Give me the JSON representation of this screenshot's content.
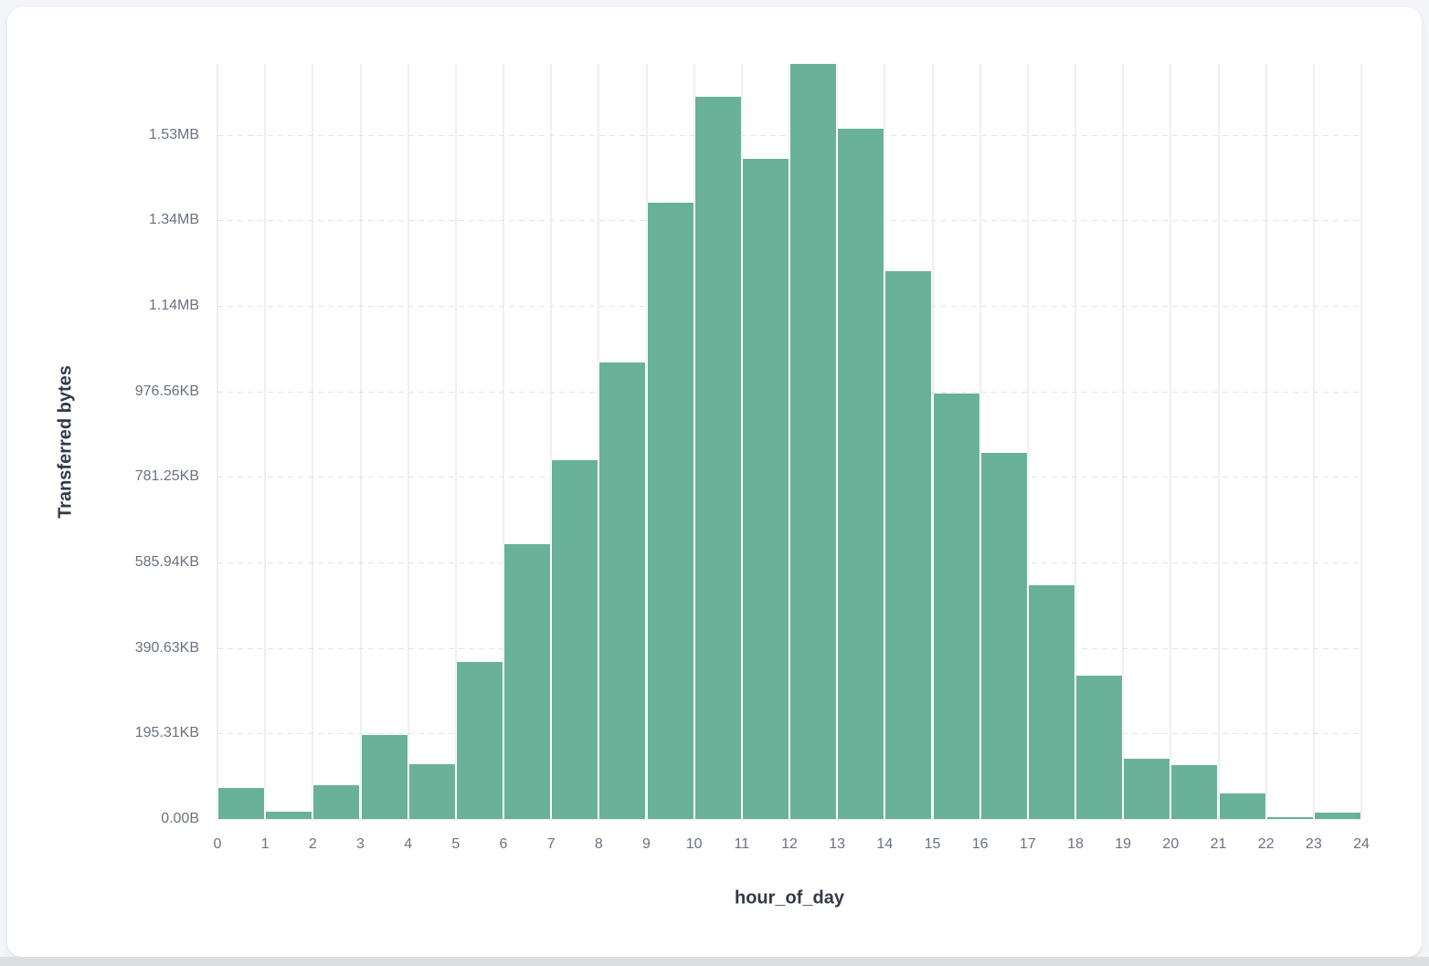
{
  "chart_data": {
    "type": "bar",
    "title": "",
    "xlabel": "hour_of_day",
    "ylabel": "Transferred bytes",
    "bar_color": "#6AB199",
    "grid": {
      "horizontal": "dashed",
      "vertical": "solid",
      "legend": "none"
    },
    "xlim": [
      0,
      24
    ],
    "ylim": [
      0,
      1766000
    ],
    "categories": [
      0,
      1,
      2,
      3,
      4,
      5,
      6,
      7,
      8,
      9,
      10,
      11,
      12,
      13,
      14,
      15,
      16,
      17,
      18,
      19,
      20,
      21,
      22,
      23
    ],
    "values": [
      73000,
      17500,
      80000,
      197000,
      128000,
      368000,
      643000,
      840000,
      1067000,
      1442000,
      1689000,
      1543000,
      1766000,
      1614000,
      1282000,
      996000,
      857000,
      547000,
      335000,
      141000,
      126000,
      59000,
      4700,
      15400
    ],
    "x_ticks": [
      "0",
      "1",
      "2",
      "3",
      "4",
      "5",
      "6",
      "7",
      "8",
      "9",
      "10",
      "11",
      "12",
      "13",
      "14",
      "15",
      "16",
      "17",
      "18",
      "19",
      "20",
      "21",
      "22",
      "23",
      "24"
    ],
    "y_ticks": [
      {
        "label": "0.00B",
        "value": 0
      },
      {
        "label": "195.31KB",
        "value": 200000
      },
      {
        "label": "390.63KB",
        "value": 400000
      },
      {
        "label": "585.94KB",
        "value": 600000
      },
      {
        "label": "781.25KB",
        "value": 800000
      },
      {
        "label": "976.56KB",
        "value": 1000000
      },
      {
        "label": "1.14MB",
        "value": 1200000
      },
      {
        "label": "1.34MB",
        "value": 1400000
      },
      {
        "label": "1.53MB",
        "value": 1600000
      }
    ]
  },
  "colors": {
    "bar": "#6AB199",
    "tick_label": "#6A7280",
    "axis_title": "#333946",
    "hgrid": "#E2E4E9",
    "vgrid": "#EDEFF2",
    "card_bg": "#FFFFFF",
    "page_bg": "#F3F5F9"
  }
}
